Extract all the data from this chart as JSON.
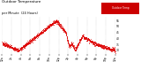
{
  "title": "Outdoor Temperature",
  "subtitle": "per Minute  (24 Hours)",
  "legend_label": "Outdoor Temp",
  "bg_color": "#ffffff",
  "plot_bg_color": "#ffffff",
  "dot_color": "#dd0000",
  "legend_bg": "#cc0000",
  "legend_text_color": "#ffffff",
  "grid_color": "#aaaaaa",
  "ylim": [
    27,
    58
  ],
  "yticks": [
    30,
    35,
    40,
    45,
    50,
    55
  ],
  "num_points": 1440,
  "seed": 7,
  "title_fontsize": 3.0,
  "subtitle_fontsize": 2.6,
  "tick_fontsize": 2.2
}
